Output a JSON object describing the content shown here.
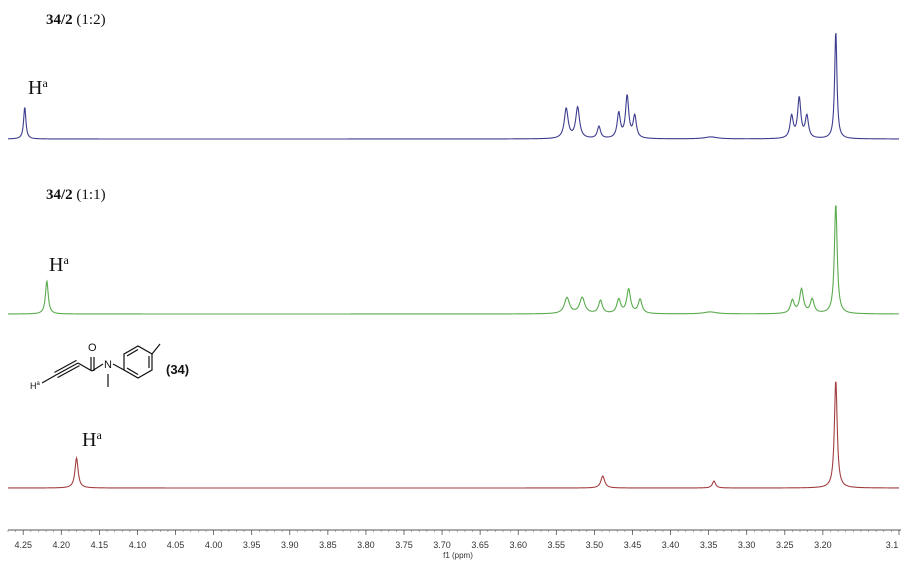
{
  "chart_data": {
    "type": "line",
    "xlabel": "f1 (ppm)",
    "xlim": [
      4.27,
      3.1
    ],
    "x_reversed": true,
    "ticks": [
      4.25,
      4.2,
      4.15,
      4.1,
      4.05,
      4.0,
      3.95,
      3.9,
      3.85,
      3.8,
      3.75,
      3.7,
      3.65,
      3.6,
      3.55,
      3.5,
      3.45,
      3.4,
      3.35,
      3.3,
      3.25,
      3.2,
      3.1
    ],
    "tick_labels": [
      "4.25",
      "4.20",
      "4.15",
      "4.10",
      "4.05",
      "4.00",
      "3.95",
      "3.90",
      "3.85",
      "3.80",
      "3.75",
      "3.70",
      "3.65",
      "3.60",
      "3.55",
      "3.50",
      "3.45",
      "3.40",
      "3.35",
      "3.30",
      "3.25",
      "3.20",
      "3.1"
    ],
    "series": [
      {
        "label_bold": "34/2",
        "label_rest": " (1:2)",
        "color": "#3d3d8f",
        "peaks": [
          {
            "x": 4.248,
            "h": 32,
            "w": 0.0018
          },
          {
            "x": 3.537,
            "h": 30,
            "w": 0.003
          },
          {
            "x": 3.522,
            "h": 31,
            "w": 0.003
          },
          {
            "x": 3.494,
            "h": 12,
            "w": 0.0025
          },
          {
            "x": 3.468,
            "h": 25,
            "w": 0.0025
          },
          {
            "x": 3.457,
            "h": 42,
            "w": 0.0025
          },
          {
            "x": 3.447,
            "h": 22,
            "w": 0.0025
          },
          {
            "x": 3.347,
            "h": 2,
            "w": 0.01
          },
          {
            "x": 3.241,
            "h": 22,
            "w": 0.0025
          },
          {
            "x": 3.231,
            "h": 40,
            "w": 0.0025
          },
          {
            "x": 3.221,
            "h": 22,
            "w": 0.0025
          },
          {
            "x": 3.183,
            "h": 108,
            "w": 0.0018
          }
        ],
        "annotation": "H",
        "annotation_sup": "a"
      },
      {
        "label_bold": "34/2",
        "label_rest": " (1:1)",
        "color": "#5aaa4e",
        "peaks": [
          {
            "x": 4.219,
            "h": 33,
            "w": 0.0022
          },
          {
            "x": 3.536,
            "h": 16,
            "w": 0.004
          },
          {
            "x": 3.516,
            "h": 16,
            "w": 0.004
          },
          {
            "x": 3.492,
            "h": 13,
            "w": 0.003
          },
          {
            "x": 3.468,
            "h": 14,
            "w": 0.003
          },
          {
            "x": 3.455,
            "h": 24,
            "w": 0.003
          },
          {
            "x": 3.44,
            "h": 14,
            "w": 0.003
          },
          {
            "x": 3.348,
            "h": 2,
            "w": 0.01
          },
          {
            "x": 3.24,
            "h": 13,
            "w": 0.003
          },
          {
            "x": 3.228,
            "h": 24,
            "w": 0.003
          },
          {
            "x": 3.214,
            "h": 14,
            "w": 0.003
          },
          {
            "x": 3.183,
            "h": 110,
            "w": 0.0022
          }
        ],
        "annotation": "H",
        "annotation_sup": "a"
      },
      {
        "label_bold": "",
        "label_rest": "",
        "color": "#a23e40",
        "peaks": [
          {
            "x": 4.18,
            "h": 30,
            "w": 0.0025
          },
          {
            "x": 3.489,
            "h": 12,
            "w": 0.003
          },
          {
            "x": 3.343,
            "h": 7,
            "w": 0.0025
          },
          {
            "x": 3.183,
            "h": 108,
            "w": 0.0022
          }
        ],
        "annotation": "H",
        "annotation_sup": "a"
      }
    ]
  },
  "compound": {
    "label": "(34)",
    "atom_O": "O",
    "atom_N": "N",
    "atom_H": "H",
    "atom_H_sup": "a"
  }
}
